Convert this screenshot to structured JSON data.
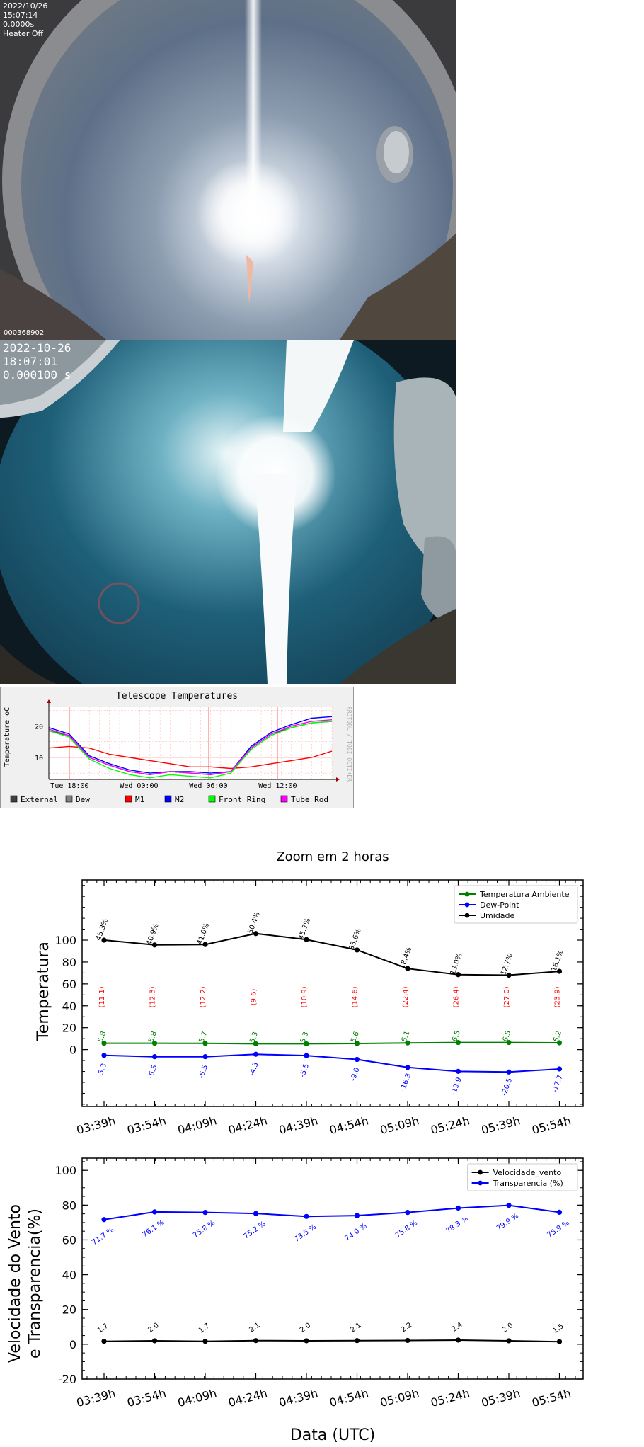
{
  "camera1": {
    "date": "2022/10/26",
    "time": "15:07:14",
    "exposure": "0.0000s",
    "heater": "Heater Off",
    "frame_id": "000368902"
  },
  "camera2": {
    "date": "2022-10-26",
    "time": "18:07:01",
    "exposure": "0.000100 s"
  },
  "chart_data": [
    {
      "type": "line",
      "title": "Telescope Temperatures",
      "ylabel": "Temperature oC",
      "side_label": "RRDTOOL / TOBI OETIKER",
      "x_ticks": [
        "Tue 18:00",
        "Wed 00:00",
        "Wed 06:00",
        "Wed 12:00"
      ],
      "y_ticks": [
        10,
        20
      ],
      "ylim": [
        3,
        26
      ],
      "x_hours": [
        0,
        2,
        4,
        6,
        8,
        10,
        12,
        14,
        16,
        18,
        20,
        22,
        24,
        26,
        28
      ],
      "grid": true,
      "legend_position": "bottom",
      "series": [
        {
          "name": "External",
          "color": "#404040",
          "values": [
            18.5,
            17,
            10,
            7.5,
            5.5,
            4.5,
            5.5,
            5,
            4.5,
            5.5,
            13,
            17.5,
            19.5,
            21,
            21.5
          ]
        },
        {
          "name": "Dew",
          "color": "#808080",
          "values": [
            null,
            null,
            null,
            null,
            null,
            null,
            null,
            null,
            null,
            null,
            null,
            null,
            null,
            null,
            null
          ]
        },
        {
          "name": "M1",
          "color": "#ff0000",
          "values": [
            13,
            13.5,
            13,
            11,
            10,
            9,
            8,
            7,
            7,
            6.5,
            7,
            8,
            9,
            10,
            12
          ]
        },
        {
          "name": "M2",
          "color": "#0000ff",
          "values": [
            19.5,
            17.5,
            10.5,
            8,
            6,
            5,
            5.5,
            5.5,
            5,
            5.5,
            13.5,
            18,
            20.5,
            22.5,
            23
          ]
        },
        {
          "name": "Front Ring",
          "color": "#00ff00",
          "values": [
            18.5,
            16.5,
            9.5,
            6.5,
            4.5,
            3.5,
            4.5,
            4,
            3.5,
            5,
            12.5,
            17,
            19.5,
            21,
            21.5
          ]
        },
        {
          "name": "Tube Rod",
          "color": "#ff00ff",
          "values": [
            19,
            17,
            10,
            7.5,
            5.5,
            4.5,
            5.5,
            5,
            4.5,
            5.5,
            13,
            17.5,
            20,
            21.5,
            22
          ]
        }
      ]
    },
    {
      "type": "line",
      "title": "Zoom em 2 horas",
      "ylabel": "Temperatura",
      "categories": [
        "03:39h",
        "03:54h",
        "04:09h",
        "04:24h",
        "04:39h",
        "04:54h",
        "05:09h",
        "05:24h",
        "05:39h",
        "05:54h"
      ],
      "y_ticks": [
        0,
        20,
        40,
        60,
        80,
        100
      ],
      "ylim": [
        -52,
        155
      ],
      "legend_position": "top-right",
      "series": [
        {
          "name": "Temperatura Ambiente",
          "color": "#008000",
          "values": [
            5.8,
            5.8,
            5.7,
            5.3,
            5.3,
            5.6,
            6.1,
            6.5,
            6.5,
            6.2
          ],
          "labels": [
            "5.8",
            "5.8",
            "5.7",
            "5.3",
            "5.3",
            "5.6",
            "6.1",
            "6.5",
            "6.5",
            "6.2"
          ]
        },
        {
          "name": "Dew-Point",
          "color": "#0000ff",
          "values": [
            -5.3,
            -6.5,
            -6.5,
            -4.3,
            -5.5,
            -9.0,
            -16.3,
            -19.9,
            -20.5,
            -17.7
          ],
          "labels": [
            "-5.3",
            "-6.5",
            "-6.5",
            "-4.3",
            "-5.5",
            "-9.0",
            "-16.3",
            "-19.9",
            "-20.5",
            "-17.7"
          ]
        },
        {
          "name": "Umidade",
          "color": "#000000",
          "values": [
            100,
            95.6,
            96,
            106,
            100.5,
            91,
            74,
            68.5,
            68,
            71.5
          ],
          "labels": [
            "45.3%",
            "40.9%",
            "41.0%",
            "50.4%",
            "45.7%",
            "35.6%",
            "18.4%",
            "13.0%",
            "12.7%",
            "16.1%"
          ]
        }
      ],
      "spread_labels": [
        "(11.1)",
        "(12.3)",
        "(12.2)",
        "(9.6)",
        "(10.9)",
        "(14.6)",
        "(22.4)",
        "(26.4)",
        "(27.0)",
        "(23.9)"
      ],
      "spread_color": "#ff0000"
    },
    {
      "type": "line",
      "xlabel": "Data (UTC)",
      "ylabel_line1": "Velocidade do Vento",
      "ylabel_line2": "e Transparencia(%)",
      "categories": [
        "03:39h",
        "03:54h",
        "04:09h",
        "04:24h",
        "04:39h",
        "04:54h",
        "05:09h",
        "05:24h",
        "05:39h",
        "05:54h"
      ],
      "y_ticks": [
        -20,
        0,
        20,
        40,
        60,
        80,
        100
      ],
      "ylim": [
        -20,
        107
      ],
      "legend_position": "top-right",
      "series": [
        {
          "name": "Velocidade_vento",
          "color": "#000000",
          "values": [
            1.7,
            2.0,
            1.7,
            2.1,
            2.0,
            2.1,
            2.2,
            2.4,
            2.0,
            1.5
          ],
          "labels": [
            "1.7",
            "2.0",
            "1.7",
            "2.1",
            "2.0",
            "2.1",
            "2.2",
            "2.4",
            "2.0",
            "1.5"
          ]
        },
        {
          "name": "Transparencia (%)",
          "color": "#0000ff",
          "values": [
            71.7,
            76.1,
            75.8,
            75.2,
            73.5,
            74.0,
            75.8,
            78.3,
            79.9,
            75.9
          ],
          "labels": [
            "71.7 %",
            "76.1 %",
            "75.8 %",
            "75.2 %",
            "73.5 %",
            "74.0 %",
            "75.8 %",
            "78.3 %",
            "79.9 %",
            "75.9 %"
          ]
        }
      ]
    }
  ]
}
